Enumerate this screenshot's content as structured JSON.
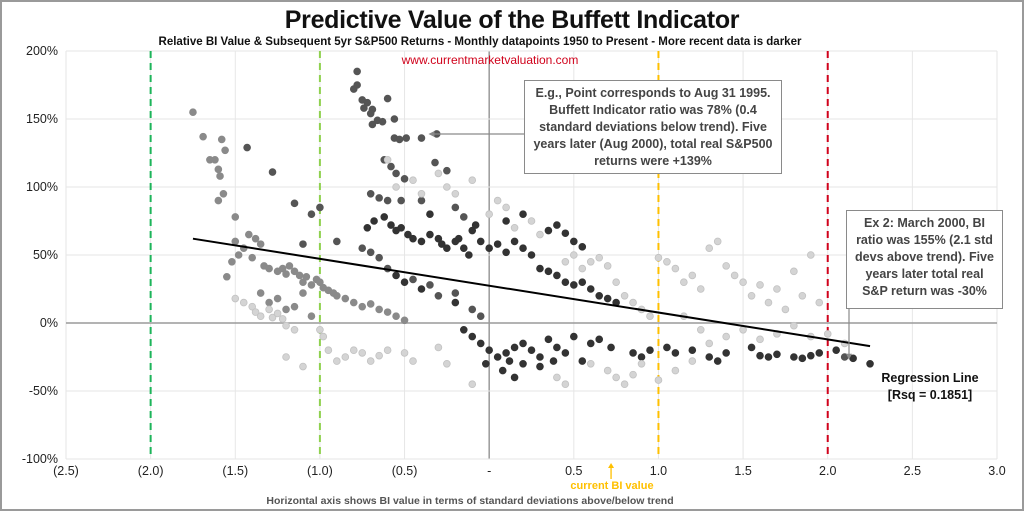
{
  "title": "Predictive Value of the Buffett Indicator",
  "subtitle": "Relative BI Value & Subsequent 5yr S&P500 Returns - Monthly datapoints 1950 to Present - More recent data is darker",
  "url": "www.currentmarketvaluation.com",
  "annotation_1": "E.g., Point corresponds to Aug 31 1995. Buffett Indicator ratio was 78% (0.4 standard deviations below trend). Five years later (Aug 2000), total real S&P500 returns were +139%",
  "annotation_2": "Ex 2: March 2000, BI ratio was 155% (2.1 std devs above trend). Five years later total real S&P return was -30%",
  "regression_label": "Regression Line",
  "regression_rsq": "[Rsq = 0.1851]",
  "current_label": "current BI value",
  "caption": "Horizontal axis shows BI value in terms of standard deviations above/below trend",
  "chart_data": {
    "type": "scatter",
    "xlabel": "Horizontal axis shows BI value in terms of standard deviations above/below trend",
    "xlim": [
      -2.5,
      3.0
    ],
    "ylim": [
      -100,
      200
    ],
    "x_ticks": [
      -2.5,
      -2.0,
      -1.5,
      -1.0,
      -0.5,
      0,
      0.5,
      1.0,
      1.5,
      2.0,
      2.5,
      3.0
    ],
    "x_tick_labels": [
      "(2.5)",
      "(2.0)",
      "(1.5)",
      "(1.0)",
      "(0.5)",
      "-",
      "0.5",
      "1.0",
      "1.5",
      "2.0",
      "2.5",
      "3.0"
    ],
    "y_ticks": [
      200,
      150,
      100,
      50,
      0,
      -50,
      -100
    ],
    "y_tick_labels": [
      "200%",
      "150%",
      "100%",
      "50%",
      "0%",
      "-50%",
      "-100%"
    ],
    "grid": true,
    "reference_lines": [
      {
        "x": -2.0,
        "color": "#1db45a"
      },
      {
        "x": -1.0,
        "color": "#8fd14f"
      },
      {
        "x": 1.0,
        "color": "#ffc000"
      },
      {
        "x": 2.0,
        "color": "#d0021b"
      }
    ],
    "current_bi_value": 0.72,
    "regression": {
      "x": [
        -1.75,
        2.25
      ],
      "y": [
        62,
        -17
      ],
      "rsq": 0.1851
    },
    "annotated_points": [
      {
        "x": -0.4,
        "y": 139
      },
      {
        "x": 2.1,
        "y": -30
      }
    ],
    "shade_colors": {
      "1": "#333333",
      "2": "#555555",
      "3": "#8a8a8a",
      "4": "#d4d4d4"
    },
    "points": [
      [
        -1.75,
        155,
        3
      ],
      [
        -1.69,
        137,
        3
      ],
      [
        -1.58,
        135,
        3
      ],
      [
        -1.56,
        127,
        3
      ],
      [
        -1.65,
        120,
        3
      ],
      [
        -1.62,
        120,
        3
      ],
      [
        -1.6,
        113,
        3
      ],
      [
        -1.59,
        108,
        3
      ],
      [
        -1.5,
        60,
        3
      ],
      [
        -1.45,
        55,
        3
      ],
      [
        -1.42,
        65,
        3
      ],
      [
        -1.38,
        62,
        3
      ],
      [
        -1.35,
        58,
        3
      ],
      [
        -1.48,
        50,
        3
      ],
      [
        -1.52,
        45,
        3
      ],
      [
        -1.4,
        48,
        3
      ],
      [
        -1.33,
        42,
        3
      ],
      [
        -1.3,
        40,
        3
      ],
      [
        -1.25,
        38,
        3
      ],
      [
        -1.22,
        40,
        3
      ],
      [
        -1.2,
        36,
        3
      ],
      [
        -1.18,
        42,
        3
      ],
      [
        -1.15,
        38,
        3
      ],
      [
        -1.12,
        35,
        3
      ],
      [
        -1.1,
        30,
        3
      ],
      [
        -1.08,
        34,
        3
      ],
      [
        -1.05,
        28,
        3
      ],
      [
        -1.02,
        32,
        3
      ],
      [
        -1.0,
        30,
        3
      ],
      [
        -0.98,
        26,
        3
      ],
      [
        -0.95,
        24,
        3
      ],
      [
        -0.92,
        22,
        3
      ],
      [
        -0.9,
        20,
        3
      ],
      [
        -0.85,
        18,
        3
      ],
      [
        -0.8,
        15,
        3
      ],
      [
        -0.75,
        12,
        3
      ],
      [
        -0.7,
        14,
        3
      ],
      [
        -0.65,
        10,
        3
      ],
      [
        -0.6,
        8,
        3
      ],
      [
        -0.55,
        5,
        3
      ],
      [
        -0.5,
        2,
        3
      ],
      [
        -1.35,
        22,
        3
      ],
      [
        -1.3,
        15,
        3
      ],
      [
        -1.25,
        18,
        3
      ],
      [
        -1.2,
        10,
        3
      ],
      [
        -1.15,
        12,
        3
      ],
      [
        -1.1,
        22,
        3
      ],
      [
        -1.05,
        5,
        3
      ],
      [
        -1.55,
        34,
        3
      ],
      [
        -1.5,
        78,
        3
      ],
      [
        -1.6,
        90,
        3
      ],
      [
        -1.57,
        95,
        3
      ],
      [
        -1.43,
        129,
        2
      ],
      [
        -1.28,
        111,
        2
      ],
      [
        -1.15,
        88,
        2
      ],
      [
        -1.0,
        85,
        2
      ],
      [
        -1.05,
        80,
        2
      ],
      [
        -0.9,
        60,
        2
      ],
      [
        -1.1,
        58,
        2
      ],
      [
        -0.78,
        185,
        2
      ],
      [
        -0.8,
        172,
        2
      ],
      [
        -0.78,
        175,
        2
      ],
      [
        -0.75,
        164,
        2
      ],
      [
        -0.72,
        162,
        2
      ],
      [
        -0.74,
        158,
        2
      ],
      [
        -0.69,
        157,
        2
      ],
      [
        -0.7,
        154,
        2
      ],
      [
        -0.66,
        149,
        2
      ],
      [
        -0.63,
        148,
        2
      ],
      [
        -0.69,
        146,
        2
      ],
      [
        -0.6,
        165,
        2
      ],
      [
        -0.56,
        150,
        2
      ],
      [
        -0.56,
        136,
        2
      ],
      [
        -0.53,
        135,
        2
      ],
      [
        -0.49,
        136,
        2
      ],
      [
        -0.4,
        136,
        2
      ],
      [
        -0.31,
        139,
        2
      ],
      [
        -0.62,
        120,
        2
      ],
      [
        -0.58,
        115,
        2
      ],
      [
        -0.55,
        110,
        2
      ],
      [
        -0.5,
        106,
        2
      ],
      [
        -0.32,
        118,
        2
      ],
      [
        -0.25,
        112,
        2
      ],
      [
        -0.7,
        95,
        2
      ],
      [
        -0.65,
        92,
        2
      ],
      [
        -0.6,
        90,
        2
      ],
      [
        -0.52,
        90,
        2
      ],
      [
        -0.4,
        90,
        2
      ],
      [
        -0.2,
        85,
        2
      ],
      [
        -0.15,
        78,
        2
      ],
      [
        -0.75,
        55,
        2
      ],
      [
        -0.7,
        52,
        2
      ],
      [
        -0.65,
        48,
        2
      ],
      [
        -0.6,
        40,
        2
      ],
      [
        -0.45,
        32,
        2
      ],
      [
        -0.35,
        28,
        2
      ],
      [
        -0.3,
        20,
        2
      ],
      [
        -0.2,
        22,
        2
      ],
      [
        -0.1,
        10,
        2
      ],
      [
        -0.05,
        5,
        2
      ],
      [
        2.1,
        -25,
        2
      ],
      [
        -0.72,
        70,
        1
      ],
      [
        -0.68,
        75,
        1
      ],
      [
        -0.62,
        78,
        1
      ],
      [
        -0.58,
        72,
        1
      ],
      [
        -0.55,
        68,
        1
      ],
      [
        -0.52,
        70,
        1
      ],
      [
        -0.48,
        65,
        1
      ],
      [
        -0.45,
        62,
        1
      ],
      [
        -0.4,
        60,
        1
      ],
      [
        -0.35,
        65,
        1
      ],
      [
        -0.3,
        62,
        1
      ],
      [
        -0.28,
        58,
        1
      ],
      [
        -0.25,
        55,
        1
      ],
      [
        -0.2,
        60,
        1
      ],
      [
        -0.18,
        62,
        1
      ],
      [
        -0.15,
        55,
        1
      ],
      [
        -0.12,
        50,
        1
      ],
      [
        -0.1,
        68,
        1
      ],
      [
        -0.08,
        72,
        1
      ],
      [
        -0.05,
        60,
        1
      ],
      [
        0.0,
        55,
        1
      ],
      [
        0.05,
        58,
        1
      ],
      [
        0.1,
        52,
        1
      ],
      [
        0.15,
        60,
        1
      ],
      [
        0.2,
        55,
        1
      ],
      [
        0.25,
        50,
        1
      ],
      [
        0.3,
        40,
        1
      ],
      [
        0.35,
        38,
        1
      ],
      [
        0.4,
        35,
        1
      ],
      [
        0.45,
        30,
        1
      ],
      [
        0.5,
        28,
        1
      ],
      [
        0.55,
        30,
        1
      ],
      [
        0.6,
        25,
        1
      ],
      [
        0.65,
        20,
        1
      ],
      [
        0.7,
        18,
        1
      ],
      [
        0.75,
        15,
        1
      ],
      [
        -0.5,
        30,
        1
      ],
      [
        -0.55,
        35,
        1
      ],
      [
        -0.4,
        25,
        1
      ],
      [
        -0.2,
        15,
        1
      ],
      [
        -0.15,
        -5,
        1
      ],
      [
        -0.1,
        -10,
        1
      ],
      [
        -0.05,
        -15,
        1
      ],
      [
        0.0,
        -20,
        1
      ],
      [
        0.05,
        -25,
        1
      ],
      [
        0.1,
        -22,
        1
      ],
      [
        0.15,
        -18,
        1
      ],
      [
        0.2,
        -15,
        1
      ],
      [
        0.25,
        -20,
        1
      ],
      [
        0.3,
        -25,
        1
      ],
      [
        0.35,
        -12,
        1
      ],
      [
        0.4,
        -18,
        1
      ],
      [
        0.45,
        -22,
        1
      ],
      [
        0.5,
        -10,
        1
      ],
      [
        0.55,
        -28,
        1
      ],
      [
        0.6,
        -15,
        1
      ],
      [
        -0.02,
        -30,
        1
      ],
      [
        0.08,
        -35,
        1
      ],
      [
        0.15,
        -40,
        1
      ],
      [
        0.2,
        -30,
        1
      ],
      [
        0.12,
        -28,
        1
      ],
      [
        0.3,
        -32,
        1
      ],
      [
        0.38,
        -28,
        1
      ],
      [
        0.65,
        -12,
        1
      ],
      [
        0.72,
        -18,
        1
      ],
      [
        0.85,
        -22,
        1
      ],
      [
        0.9,
        -25,
        1
      ],
      [
        0.95,
        -20,
        1
      ],
      [
        1.05,
        -18,
        1
      ],
      [
        1.1,
        -22,
        1
      ],
      [
        1.2,
        -20,
        1
      ],
      [
        1.3,
        -25,
        1
      ],
      [
        1.35,
        -28,
        1
      ],
      [
        1.4,
        -22,
        1
      ],
      [
        1.6,
        -24,
        1
      ],
      [
        1.65,
        -25,
        1
      ],
      [
        1.7,
        -23,
        1
      ],
      [
        1.8,
        -25,
        1
      ],
      [
        1.85,
        -26,
        1
      ],
      [
        1.9,
        -24,
        1
      ],
      [
        1.95,
        -22,
        1
      ],
      [
        2.05,
        -20,
        1
      ],
      [
        2.15,
        -26,
        1
      ],
      [
        2.25,
        -30,
        1
      ],
      [
        1.55,
        -18,
        1
      ],
      [
        0.35,
        68,
        1
      ],
      [
        0.4,
        72,
        1
      ],
      [
        0.45,
        66,
        1
      ],
      [
        0.5,
        60,
        1
      ],
      [
        0.55,
        56,
        1
      ],
      [
        -0.35,
        80,
        1
      ],
      [
        0.1,
        75,
        1
      ],
      [
        0.2,
        80,
        1
      ],
      [
        -1.5,
        18,
        4
      ],
      [
        -1.45,
        15,
        4
      ],
      [
        -1.4,
        12,
        4
      ],
      [
        -1.38,
        8,
        4
      ],
      [
        -1.35,
        5,
        4
      ],
      [
        -1.3,
        10,
        4
      ],
      [
        -1.28,
        4,
        4
      ],
      [
        -1.25,
        7,
        4
      ],
      [
        -1.22,
        3,
        4
      ],
      [
        -1.2,
        -2,
        4
      ],
      [
        -1.15,
        -5,
        4
      ],
      [
        -1.0,
        -5,
        4
      ],
      [
        -0.98,
        -10,
        4
      ],
      [
        -0.95,
        -20,
        4
      ],
      [
        -0.9,
        -28,
        4
      ],
      [
        -0.85,
        -25,
        4
      ],
      [
        -0.8,
        -20,
        4
      ],
      [
        -0.75,
        -22,
        4
      ],
      [
        -0.7,
        -28,
        4
      ],
      [
        -0.65,
        -24,
        4
      ],
      [
        -0.6,
        -20,
        4
      ],
      [
        -0.5,
        -22,
        4
      ],
      [
        -0.45,
        -28,
        4
      ],
      [
        -1.1,
        -32,
        4
      ],
      [
        -1.2,
        -25,
        4
      ],
      [
        -0.3,
        -18,
        4
      ],
      [
        -0.25,
        -30,
        4
      ],
      [
        -0.6,
        120,
        4
      ],
      [
        -0.55,
        100,
        4
      ],
      [
        -0.45,
        105,
        4
      ],
      [
        -0.4,
        95,
        4
      ],
      [
        -0.3,
        110,
        4
      ],
      [
        -0.25,
        100,
        4
      ],
      [
        -0.2,
        95,
        4
      ],
      [
        -0.1,
        105,
        4
      ],
      [
        0.0,
        80,
        4
      ],
      [
        0.05,
        90,
        4
      ],
      [
        0.1,
        85,
        4
      ],
      [
        0.15,
        70,
        4
      ],
      [
        0.25,
        75,
        4
      ],
      [
        0.3,
        65,
        4
      ],
      [
        0.45,
        45,
        4
      ],
      [
        0.5,
        50,
        4
      ],
      [
        0.55,
        40,
        4
      ],
      [
        0.6,
        45,
        4
      ],
      [
        0.65,
        48,
        4
      ],
      [
        0.7,
        42,
        4
      ],
      [
        0.75,
        30,
        4
      ],
      [
        0.8,
        20,
        4
      ],
      [
        0.85,
        15,
        4
      ],
      [
        0.9,
        10,
        4
      ],
      [
        0.95,
        5,
        4
      ],
      [
        1.0,
        48,
        4
      ],
      [
        1.05,
        45,
        4
      ],
      [
        1.1,
        40,
        4
      ],
      [
        1.15,
        30,
        4
      ],
      [
        1.2,
        35,
        4
      ],
      [
        1.25,
        25,
        4
      ],
      [
        1.3,
        55,
        4
      ],
      [
        1.35,
        60,
        4
      ],
      [
        1.4,
        42,
        4
      ],
      [
        1.45,
        35,
        4
      ],
      [
        1.5,
        30,
        4
      ],
      [
        1.55,
        20,
        4
      ],
      [
        1.6,
        28,
        4
      ],
      [
        1.65,
        15,
        4
      ],
      [
        1.7,
        25,
        4
      ],
      [
        1.75,
        10,
        4
      ],
      [
        1.8,
        38,
        4
      ],
      [
        1.85,
        20,
        4
      ],
      [
        1.9,
        50,
        4
      ],
      [
        1.95,
        15,
        4
      ],
      [
        0.6,
        -30,
        4
      ],
      [
        0.7,
        -35,
        4
      ],
      [
        0.75,
        -40,
        4
      ],
      [
        0.8,
        -45,
        4
      ],
      [
        0.85,
        -38,
        4
      ],
      [
        0.9,
        -30,
        4
      ],
      [
        1.0,
        -42,
        4
      ],
      [
        1.1,
        -35,
        4
      ],
      [
        1.2,
        -28,
        4
      ],
      [
        1.3,
        -15,
        4
      ],
      [
        1.4,
        -10,
        4
      ],
      [
        1.5,
        -5,
        4
      ],
      [
        1.6,
        -12,
        4
      ],
      [
        1.7,
        -8,
        4
      ],
      [
        1.8,
        -2,
        4
      ],
      [
        1.9,
        -10,
        4
      ],
      [
        2.0,
        -8,
        4
      ],
      [
        2.1,
        -15,
        4
      ],
      [
        0.4,
        -40,
        4
      ],
      [
        0.45,
        -45,
        4
      ],
      [
        -0.1,
        -45,
        4
      ],
      [
        1.25,
        -5,
        4
      ],
      [
        1.15,
        5,
        4
      ]
    ]
  }
}
